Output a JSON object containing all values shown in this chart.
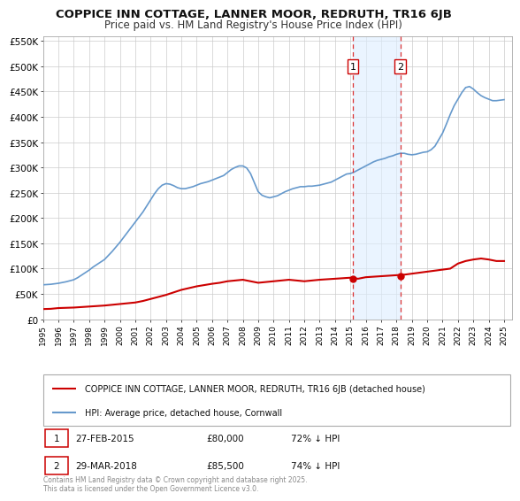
{
  "title": "COPPICE INN COTTAGE, LANNER MOOR, REDRUTH, TR16 6JB",
  "subtitle": "Price paid vs. HM Land Registry's House Price Index (HPI)",
  "background_color": "#ffffff",
  "plot_bg_color": "#ffffff",
  "grid_color": "#cccccc",
  "ylim": [
    0,
    560000
  ],
  "xlim_start": 1995.0,
  "xlim_end": 2025.5,
  "yticks": [
    0,
    50000,
    100000,
    150000,
    200000,
    250000,
    300000,
    350000,
    400000,
    450000,
    500000,
    550000
  ],
  "ytick_labels": [
    "£0",
    "£50K",
    "£100K",
    "£150K",
    "£200K",
    "£250K",
    "£300K",
    "£350K",
    "£400K",
    "£450K",
    "£500K",
    "£550K"
  ],
  "xtick_years": [
    1995,
    1996,
    1997,
    1998,
    1999,
    2000,
    2001,
    2002,
    2003,
    2004,
    2005,
    2006,
    2007,
    2008,
    2009,
    2010,
    2011,
    2012,
    2013,
    2014,
    2015,
    2016,
    2017,
    2018,
    2019,
    2020,
    2021,
    2022,
    2023,
    2024,
    2025
  ],
  "hpi_color": "#6699cc",
  "price_color": "#cc0000",
  "marker_color": "#cc0000",
  "vline_color": "#dd3333",
  "shade_color": "#ddeeff",
  "sale1_year": 2015.16,
  "sale2_year": 2018.25,
  "sale1_price": 80000,
  "sale2_price": 85500,
  "legend_label_price": "COPPICE INN COTTAGE, LANNER MOOR, REDRUTH, TR16 6JB (detached house)",
  "legend_label_hpi": "HPI: Average price, detached house, Cornwall",
  "table_row1": [
    "1",
    "27-FEB-2015",
    "£80,000",
    "72% ↓ HPI"
  ],
  "table_row2": [
    "2",
    "29-MAR-2018",
    "£85,500",
    "74% ↓ HPI"
  ],
  "footnote": "Contains HM Land Registry data © Crown copyright and database right 2025.\nThis data is licensed under the Open Government Licence v3.0.",
  "hpi_x": [
    1995.0,
    1995.25,
    1995.5,
    1995.75,
    1996.0,
    1996.25,
    1996.5,
    1996.75,
    1997.0,
    1997.25,
    1997.5,
    1997.75,
    1998.0,
    1998.25,
    1998.5,
    1998.75,
    1999.0,
    1999.25,
    1999.5,
    1999.75,
    2000.0,
    2000.25,
    2000.5,
    2000.75,
    2001.0,
    2001.25,
    2001.5,
    2001.75,
    2002.0,
    2002.25,
    2002.5,
    2002.75,
    2003.0,
    2003.25,
    2003.5,
    2003.75,
    2004.0,
    2004.25,
    2004.5,
    2004.75,
    2005.0,
    2005.25,
    2005.5,
    2005.75,
    2006.0,
    2006.25,
    2006.5,
    2006.75,
    2007.0,
    2007.25,
    2007.5,
    2007.75,
    2008.0,
    2008.25,
    2008.5,
    2008.75,
    2009.0,
    2009.25,
    2009.5,
    2009.75,
    2010.0,
    2010.25,
    2010.5,
    2010.75,
    2011.0,
    2011.25,
    2011.5,
    2011.75,
    2012.0,
    2012.25,
    2012.5,
    2012.75,
    2013.0,
    2013.25,
    2013.5,
    2013.75,
    2014.0,
    2014.25,
    2014.5,
    2014.75,
    2015.0,
    2015.25,
    2015.5,
    2015.75,
    2016.0,
    2016.25,
    2016.5,
    2016.75,
    2017.0,
    2017.25,
    2017.5,
    2017.75,
    2018.0,
    2018.25,
    2018.5,
    2018.75,
    2019.0,
    2019.25,
    2019.5,
    2019.75,
    2020.0,
    2020.25,
    2020.5,
    2020.75,
    2021.0,
    2021.25,
    2021.5,
    2021.75,
    2022.0,
    2022.25,
    2022.5,
    2022.75,
    2023.0,
    2023.25,
    2023.5,
    2023.75,
    2024.0,
    2024.25,
    2024.5,
    2024.75,
    2025.0
  ],
  "hpi_y": [
    68000,
    68500,
    69000,
    70000,
    71000,
    72500,
    74000,
    76000,
    78000,
    82000,
    87000,
    92000,
    97000,
    103000,
    108000,
    113000,
    118000,
    126000,
    134000,
    143000,
    152000,
    162000,
    172000,
    182000,
    192000,
    202000,
    212000,
    224000,
    236000,
    248000,
    258000,
    265000,
    268000,
    267000,
    264000,
    260000,
    258000,
    258000,
    260000,
    262000,
    265000,
    268000,
    270000,
    272000,
    275000,
    278000,
    281000,
    284000,
    290000,
    296000,
    300000,
    303000,
    303000,
    299000,
    288000,
    270000,
    252000,
    245000,
    242000,
    240000,
    242000,
    244000,
    248000,
    252000,
    255000,
    258000,
    260000,
    262000,
    262000,
    263000,
    263000,
    264000,
    265000,
    267000,
    269000,
    271000,
    275000,
    279000,
    283000,
    287000,
    288000,
    291000,
    295000,
    299000,
    303000,
    307000,
    311000,
    314000,
    316000,
    318000,
    321000,
    323000,
    326000,
    328000,
    328000,
    326000,
    325000,
    326000,
    328000,
    330000,
    331000,
    335000,
    342000,
    355000,
    368000,
    386000,
    405000,
    422000,
    435000,
    448000,
    458000,
    460000,
    455000,
    448000,
    442000,
    438000,
    435000,
    432000,
    432000,
    433000,
    434000
  ],
  "price_x": [
    1995.0,
    1995.5,
    1996.0,
    1997.0,
    1998.0,
    1999.0,
    2000.0,
    2001.0,
    2001.5,
    2002.0,
    2003.0,
    2004.0,
    2005.0,
    2006.0,
    2006.5,
    2007.0,
    2008.0,
    2009.0,
    2010.0,
    2011.0,
    2012.0,
    2013.0,
    2014.0,
    2015.0,
    2015.5,
    2016.0,
    2016.5,
    2017.0,
    2017.5,
    2018.0,
    2018.5,
    2019.0,
    2019.5,
    2020.0,
    2020.5,
    2021.0,
    2021.5,
    2022.0,
    2022.5,
    2023.0,
    2023.5,
    2024.0,
    2024.5,
    2025.0
  ],
  "price_y": [
    20000,
    20500,
    22000,
    23000,
    25000,
    27000,
    30000,
    33000,
    36000,
    40000,
    48000,
    58000,
    65000,
    70000,
    72000,
    75000,
    78000,
    72000,
    75000,
    78000,
    75000,
    78000,
    80000,
    82000,
    80000,
    83000,
    84000,
    85000,
    86000,
    87000,
    88000,
    90000,
    92000,
    94000,
    96000,
    98000,
    100000,
    110000,
    115000,
    118000,
    120000,
    118000,
    115000,
    115000
  ]
}
